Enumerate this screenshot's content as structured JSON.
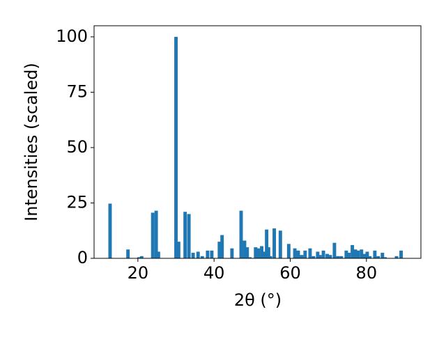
{
  "chart_data": {
    "type": "bar",
    "xlabel": "2θ (°)",
    "ylabel": "Intensities (scaled)",
    "color": "#1f77b4",
    "x": [
      12.7,
      17.4,
      20.3,
      21.0,
      23.9,
      24.8,
      25.4,
      30.0,
      30.7,
      32.4,
      33.4,
      34.5,
      35.8,
      36.9,
      38.3,
      39.4,
      41.4,
      42.1,
      44.7,
      47.1,
      48.0,
      48.7,
      49.4,
      50.9,
      51.6,
      52.5,
      53.2,
      53.8,
      54.3,
      54.8,
      55.8,
      57.4,
      59.6,
      61.2,
      62.1,
      63.0,
      63.9,
      65.2,
      66.1,
      67.2,
      67.8,
      68.7,
      69.7,
      70.5,
      71.6,
      72.5,
      73.4,
      74.7,
      75.4,
      76.3,
      77.1,
      77.8,
      78.7,
      79.4,
      80.2,
      80.9,
      82.2,
      83.1,
      84.2,
      84.9,
      87.9,
      89.1
    ],
    "values": [
      24.7,
      4,
      0.5,
      1,
      20.6,
      21.5,
      3,
      100,
      7.5,
      21,
      20,
      2.5,
      3,
      1,
      3.5,
      3.5,
      7.5,
      10.5,
      4.5,
      21.5,
      8,
      5,
      0.5,
      5,
      4.5,
      5.5,
      3,
      13,
      5,
      1,
      13.5,
      12.5,
      6.5,
      4.5,
      3.5,
      1.5,
      3.5,
      4.5,
      1,
      3,
      1.5,
      3.5,
      2,
      1.5,
      7,
      1,
      1,
      3.5,
      2.5,
      6,
      4,
      3.5,
      4,
      2,
      3,
      1,
      3.5,
      1,
      2.5,
      0.5,
      1,
      3.5
    ],
    "xlim": [
      8.5,
      94.3
    ],
    "ylim": [
      0,
      105
    ],
    "xticks": [
      20,
      40,
      60,
      80
    ],
    "yticks": [
      0,
      25,
      50,
      75,
      100
    ]
  }
}
